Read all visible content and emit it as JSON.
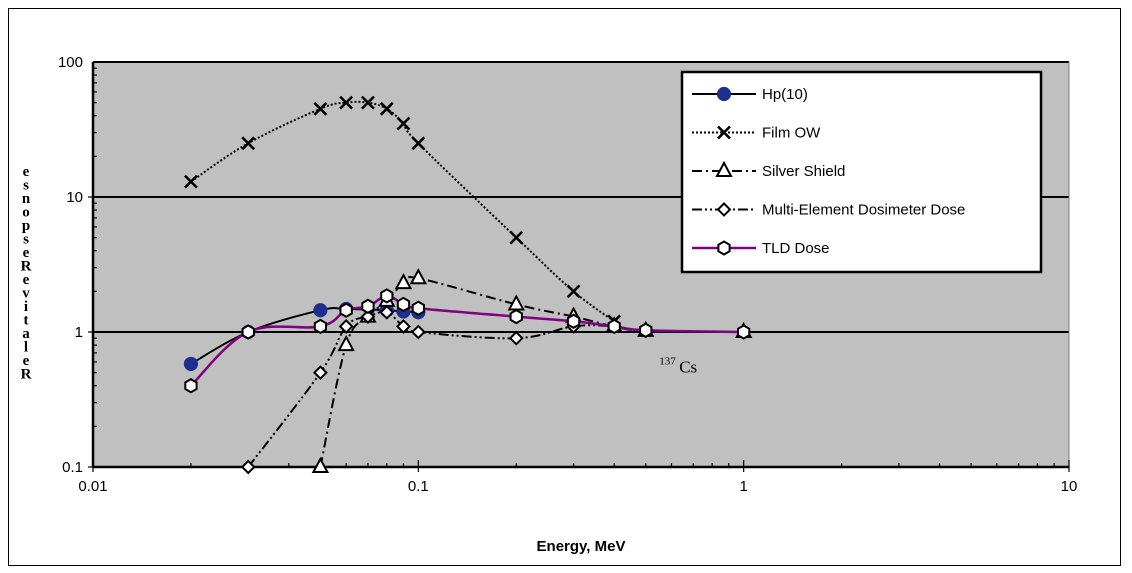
{
  "chart_data": {
    "type": "line",
    "xscale": "log",
    "yscale": "log",
    "xlim": [
      0.01,
      10
    ],
    "ylim": [
      0.1,
      100
    ],
    "xlabel": "Energy, MeV",
    "ylabel": "Relative Response",
    "ylabel_rendered": "esnopseR evitaleR",
    "xticks": [
      "0.01",
      "0.1",
      "1",
      "10"
    ],
    "yticks": [
      "0.1",
      "1",
      "10",
      "100"
    ],
    "grid": "horizontal major lines",
    "plot_background": "#c0c0c0",
    "legend_position": "top-right",
    "annotation": {
      "sup": "137",
      "text": "Cs",
      "x": 0.55,
      "y": 0.52
    },
    "series": [
      {
        "name": "Hp(10)",
        "color": "#000000",
        "marker_fill": "#1f2f8f",
        "marker": "circle",
        "dash": "solid",
        "x": [
          0.02,
          0.03,
          0.05,
          0.06,
          0.08,
          0.09,
          0.1
        ],
        "y": [
          0.58,
          1.0,
          1.45,
          1.48,
          1.45,
          1.42,
          1.4
        ]
      },
      {
        "name": "Film OW",
        "color": "#000000",
        "marker": "x",
        "dash": "dotted",
        "x": [
          0.02,
          0.03,
          0.05,
          0.06,
          0.07,
          0.08,
          0.09,
          0.1,
          0.2,
          0.3,
          0.4
        ],
        "y": [
          13,
          25,
          45,
          50,
          50,
          45,
          35,
          25,
          5,
          2,
          1.2
        ]
      },
      {
        "name": "Silver Shield",
        "color": "#000000",
        "marker": "triangle",
        "dash": "dashdot",
        "x": [
          0.05,
          0.06,
          0.07,
          0.08,
          0.09,
          0.1,
          0.2,
          0.3,
          0.4,
          0.5,
          1.0
        ],
        "y": [
          0.1,
          0.8,
          1.3,
          1.7,
          2.3,
          2.5,
          1.6,
          1.3,
          1.1,
          1.02,
          1.0
        ]
      },
      {
        "name": "Multi-Element Dosimeter Dose",
        "color": "#000000",
        "marker": "diamond",
        "dash": "dashdotdot",
        "x": [
          0.03,
          0.05,
          0.06,
          0.07,
          0.08,
          0.09,
          0.1,
          0.2,
          0.3,
          0.4,
          0.5,
          1.0
        ],
        "y": [
          0.1,
          0.5,
          1.1,
          1.3,
          1.4,
          1.1,
          1.0,
          0.9,
          1.1,
          1.1,
          1.02,
          1.0
        ]
      },
      {
        "name": "TLD Dose",
        "color": "#800080",
        "marker": "hexagon",
        "dash": "solid",
        "x": [
          0.02,
          0.03,
          0.05,
          0.06,
          0.07,
          0.08,
          0.09,
          0.1,
          0.2,
          0.3,
          0.4,
          0.5,
          1.0
        ],
        "y": [
          0.4,
          1.0,
          1.1,
          1.45,
          1.55,
          1.85,
          1.6,
          1.5,
          1.3,
          1.2,
          1.1,
          1.03,
          1.0
        ]
      }
    ]
  }
}
